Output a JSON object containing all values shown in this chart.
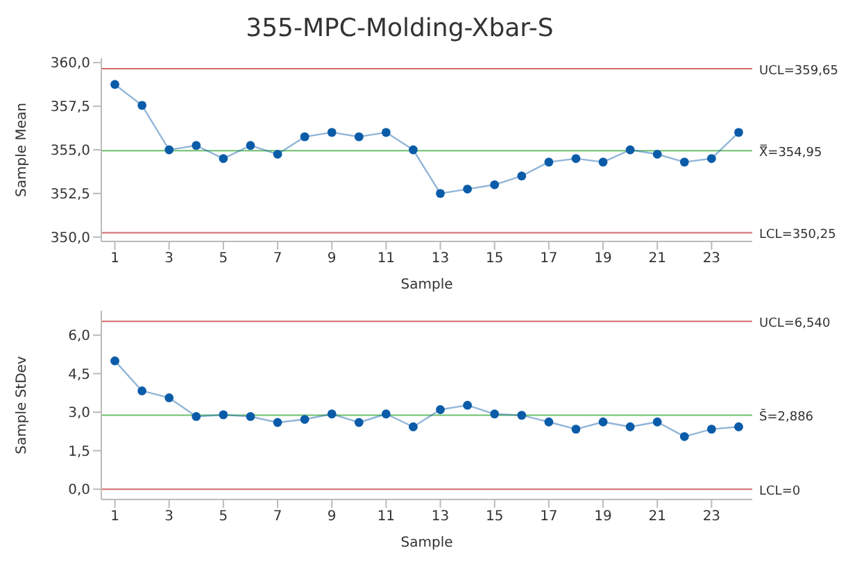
{
  "chart_data": [
    {
      "type": "line",
      "title": "355-MPC-Molding-Xbar-S",
      "xlabel": "Sample",
      "ylabel": "Sample Mean",
      "x": [
        1,
        2,
        3,
        4,
        5,
        6,
        7,
        8,
        9,
        10,
        11,
        12,
        13,
        14,
        15,
        16,
        17,
        18,
        19,
        20,
        21,
        22,
        23,
        24
      ],
      "series": [
        {
          "color": "#0b5ca8",
          "values": [
            358.75,
            357.55,
            355.0,
            355.25,
            354.5,
            355.25,
            354.75,
            355.75,
            356.0,
            355.75,
            356.0,
            355.0,
            352.5,
            352.75,
            353.0,
            353.5,
            354.3,
            354.5,
            354.3,
            355.0,
            354.75,
            354.3,
            354.5,
            356.0
          ]
        }
      ],
      "xlim": [
        0.5,
        24.5
      ],
      "xticks": [
        1,
        3,
        5,
        7,
        9,
        11,
        13,
        15,
        17,
        19,
        21,
        23
      ],
      "ylim": [
        349.75,
        360.25
      ],
      "yticks": [
        {
          "value": 350,
          "label": "350,0"
        },
        {
          "value": 352.5,
          "label": "352,5"
        },
        {
          "value": 355,
          "label": "355,0"
        },
        {
          "value": 357.5,
          "label": "357,5"
        },
        {
          "value": 360,
          "label": "360,0"
        }
      ],
      "ref_lines": [
        {
          "axis": "y",
          "value": 359.65,
          "label": "UCL=359,65",
          "color": "#d46a6a"
        },
        {
          "axis": "y",
          "value": 354.95,
          "label": "X̿=354,95",
          "color": "#6dbf6d"
        },
        {
          "axis": "y",
          "value": 350.25,
          "label": "LCL=350,25",
          "color": "#d46a6a"
        }
      ],
      "marker": "circle",
      "grid": false,
      "legend": false
    },
    {
      "type": "line",
      "xlabel": "Sample",
      "ylabel": "Sample StDev",
      "x": [
        1,
        2,
        3,
        4,
        5,
        6,
        7,
        8,
        9,
        10,
        11,
        12,
        13,
        14,
        15,
        16,
        17,
        18,
        19,
        20,
        21,
        22,
        23,
        24
      ],
      "series": [
        {
          "color": "#0b5ca8",
          "values": [
            5.0,
            3.83,
            3.56,
            2.83,
            2.9,
            2.83,
            2.6,
            2.72,
            2.93,
            2.6,
            2.93,
            2.43,
            3.1,
            3.27,
            2.93,
            2.88,
            2.62,
            2.34,
            2.62,
            2.43,
            2.62,
            2.05,
            2.34,
            2.43
          ]
        }
      ],
      "xlim": [
        0.5,
        24.5
      ],
      "xticks": [
        1,
        3,
        5,
        7,
        9,
        11,
        13,
        15,
        17,
        19,
        21,
        23
      ],
      "ylim": [
        -0.4,
        6.95
      ],
      "yticks": [
        {
          "value": 0,
          "label": "0,0"
        },
        {
          "value": 1.5,
          "label": "1,5"
        },
        {
          "value": 3,
          "label": "3,0"
        },
        {
          "value": 4.5,
          "label": "4,5"
        },
        {
          "value": 6,
          "label": "6,0"
        }
      ],
      "ref_lines": [
        {
          "axis": "y",
          "value": 6.54,
          "label": "UCL=6,540",
          "color": "#d46a6a"
        },
        {
          "axis": "y",
          "value": 2.886,
          "label": "S̄=2,886",
          "color": "#6dbf6d"
        },
        {
          "axis": "y",
          "value": 0,
          "label": "LCL=0",
          "color": "#d46a6a"
        }
      ],
      "marker": "circle",
      "grid": false,
      "legend": false
    }
  ]
}
